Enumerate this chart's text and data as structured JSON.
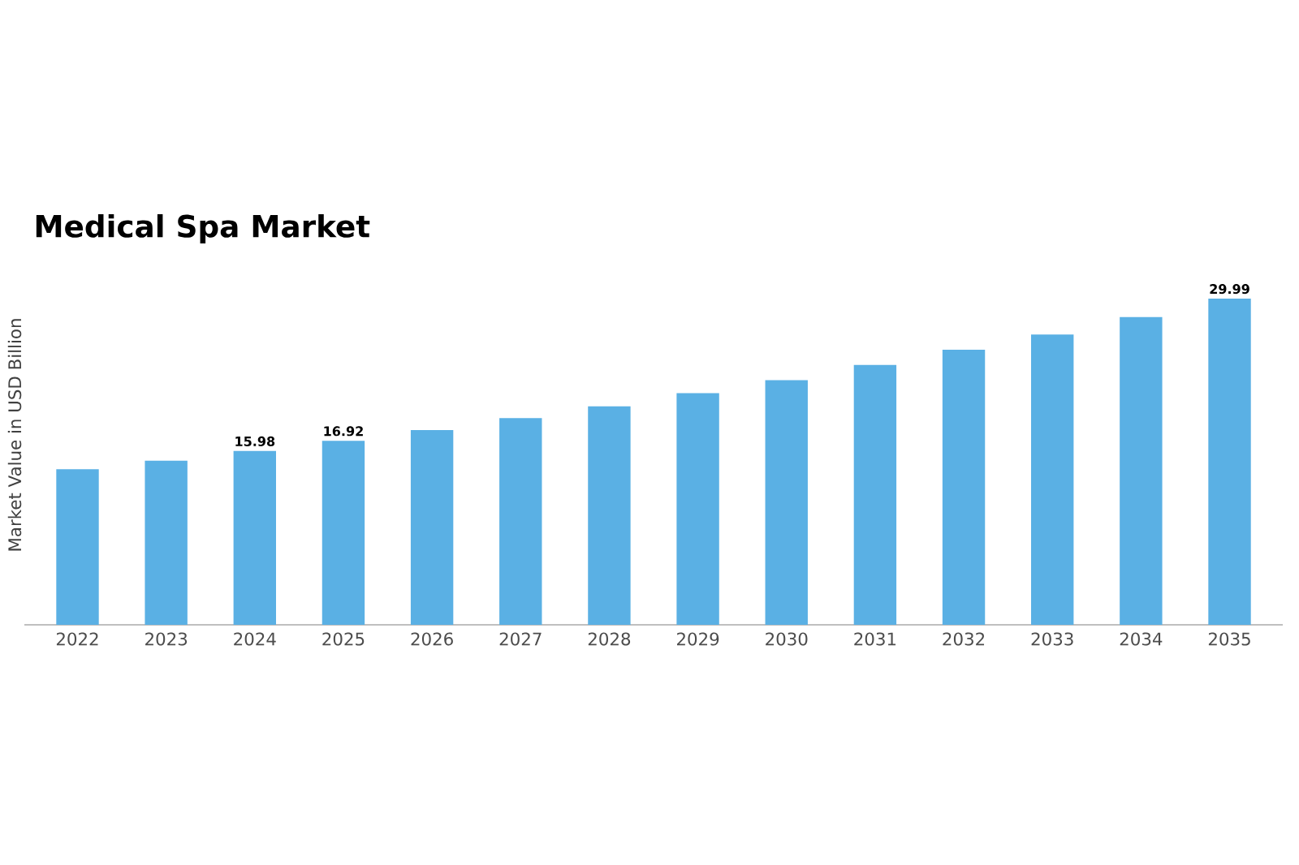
{
  "chart_data": {
    "type": "bar",
    "title": "Medical Spa Market",
    "ylabel": "Market Value in USD Billion",
    "categories": [
      "2022",
      "2023",
      "2024",
      "2025",
      "2026",
      "2027",
      "2028",
      "2029",
      "2030",
      "2031",
      "2032",
      "2033",
      "2034",
      "2035"
    ],
    "values": [
      14.3,
      15.1,
      15.98,
      16.92,
      17.9,
      19.0,
      20.1,
      21.3,
      22.5,
      23.9,
      25.3,
      26.7,
      28.3,
      29.99
    ],
    "value_labels": [
      null,
      null,
      "15.98",
      "16.92",
      null,
      null,
      null,
      null,
      null,
      null,
      null,
      null,
      null,
      "29.99"
    ],
    "color": "#5ab0e4"
  }
}
